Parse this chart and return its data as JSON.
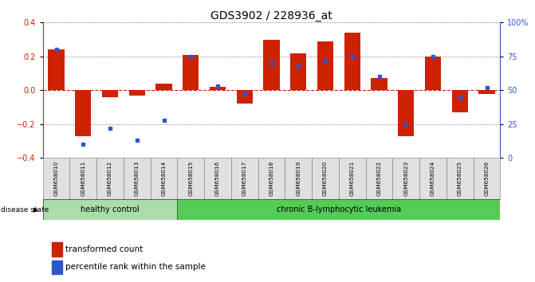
{
  "title": "GDS3902 / 228936_at",
  "samples": [
    "GSM658010",
    "GSM658011",
    "GSM658012",
    "GSM658013",
    "GSM658014",
    "GSM658015",
    "GSM658016",
    "GSM658017",
    "GSM658018",
    "GSM658019",
    "GSM658020",
    "GSM658021",
    "GSM658022",
    "GSM658023",
    "GSM658024",
    "GSM658025",
    "GSM658026"
  ],
  "bar_values": [
    0.24,
    -0.27,
    -0.04,
    -0.03,
    0.04,
    0.21,
    0.02,
    -0.08,
    0.3,
    0.22,
    0.29,
    0.34,
    0.07,
    -0.27,
    0.2,
    -0.13,
    -0.02
  ],
  "dot_values": [
    80,
    10,
    22,
    13,
    28,
    75,
    53,
    47,
    70,
    68,
    72,
    75,
    60,
    25,
    75,
    45,
    52
  ],
  "healthy_count": 5,
  "ylim": [
    -0.4,
    0.4
  ],
  "y2lim": [
    0,
    100
  ],
  "yticks": [
    -0.4,
    -0.2,
    0.0,
    0.2,
    0.4
  ],
  "y2ticks": [
    0,
    25,
    50,
    75,
    100
  ],
  "bar_color": "#cc2200",
  "dot_color": "#3355cc",
  "zero_line_color": "#cc2200",
  "dotted_line_color": "#555555",
  "healthy_color": "#aaddaa",
  "leukemia_color": "#55cc55",
  "group_label_healthy": "healthy control",
  "group_label_leukemia": "chronic B-lymphocytic leukemia",
  "legend_bar": "transformed count",
  "legend_dot": "percentile rank within the sample",
  "disease_state_label": "disease state",
  "title_fontsize": 10,
  "tick_fontsize": 7,
  "label_fontsize": 7
}
